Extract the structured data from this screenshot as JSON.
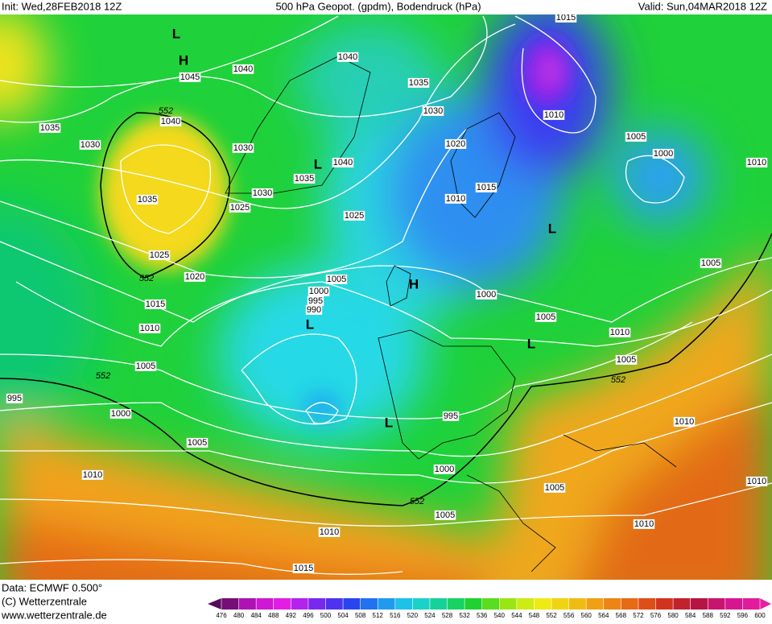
{
  "header": {
    "init": "Init: Wed,28FEB2018 12Z",
    "title": "500 hPa Geopot. (gpdm), Bodendruck (hPa)",
    "valid": "Valid: Sun,04MAR2018 12Z"
  },
  "footer": {
    "data": "Data: ECMWF  0.500°",
    "copyright": "(C) Wetterzentrale",
    "url": "www.wetterzentrale.de"
  },
  "isobar_labels": [
    "1015",
    "1040",
    "1045",
    "1040",
    "1035",
    "1030",
    "1010",
    "1035",
    "1040",
    "1030",
    "1030",
    "1020",
    "1005",
    "1000",
    "1040",
    "1035",
    "1015",
    "1010",
    "1030",
    "1025",
    "1035",
    "1025",
    "1025",
    "1020",
    "1005",
    "1005",
    "1000",
    "995",
    "990",
    "1015",
    "1000",
    "1005",
    "1010",
    "1010",
    "1005",
    "1005",
    "995",
    "1000",
    "995",
    "1010",
    "1005",
    "1010",
    "1000",
    "1005",
    "1005",
    "1010",
    "1010",
    "1015",
    "1010",
    "1010"
  ],
  "contour_552_labels": [
    "552",
    "552",
    "552",
    "552",
    "552"
  ],
  "pressure_centers": [
    "L",
    "H",
    "H",
    "L",
    "L",
    "L",
    "L",
    "L"
  ],
  "colorbar": {
    "levels": [
      476,
      480,
      484,
      488,
      492,
      496,
      500,
      504,
      508,
      512,
      516,
      520,
      524,
      528,
      532,
      536,
      540,
      544,
      548,
      552,
      556,
      560,
      564,
      568,
      572,
      576,
      580,
      584,
      588,
      592,
      596,
      600
    ]
  }
}
